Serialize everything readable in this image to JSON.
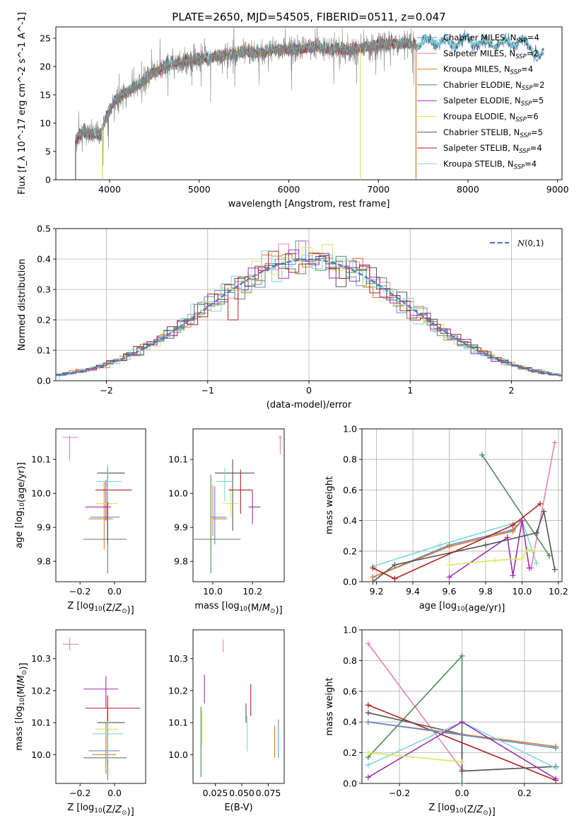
{
  "figure": {
    "title": "PLATE=2650, MJD=54505, FIBERID=0511, z=0.047"
  },
  "colors": {
    "Chabrier MILES": "#5a8fd6",
    "Salpeter MILES": "#e882b4",
    "Kroupa MILES": "#e07b28",
    "Chabrier ELODIE": "#4f8a5b",
    "Salpeter ELODIE": "#9b30b0",
    "Kroupa ELODIE": "#d7e85a",
    "Chabrier STELIB": "#555555",
    "Salpeter STELIB": "#b22222",
    "Kroupa STELIB": "#7fd6dc"
  },
  "chart_data": [
    {
      "id": "spectrum",
      "type": "line",
      "title": "PLATE=2650, MJD=54505, FIBERID=0511, z=0.047",
      "xlabel": "wavelength [Angstrom, rest frame]",
      "ylabel": "Flux [f_λ 10^-17 erg cm^-2 s^-1 A^-1]",
      "xlim": [
        3400,
        9050
      ],
      "ylim": [
        0,
        27
      ],
      "xticks": [
        4000,
        5000,
        6000,
        7000,
        8000,
        9000
      ],
      "yticks": [
        0,
        5,
        10,
        15,
        20,
        25
      ],
      "legend_position": "right",
      "legend": [
        {
          "name": "Chabrier MILES",
          "nssp": "4"
        },
        {
          "name": "Salpeter MILES",
          "nssp": "2"
        },
        {
          "name": "Kroupa MILES",
          "nssp": "4"
        },
        {
          "name": "Chabrier ELODIE",
          "nssp": "2"
        },
        {
          "name": "Salpeter ELODIE",
          "nssp": "5"
        },
        {
          "name": "Kroupa ELODIE",
          "nssp": "6"
        },
        {
          "name": "Chabrier STELIB",
          "nssp": "5"
        },
        {
          "name": "Salpeter STELIB",
          "nssp": "4"
        },
        {
          "name": "Kroupa STELIB",
          "nssp": "4"
        }
      ],
      "continuum": {
        "x": [
          3620,
          3700,
          3800,
          3900,
          3950,
          4050,
          4150,
          4300,
          4500,
          4700,
          4900,
          5100,
          5300,
          5500,
          5700,
          5900,
          6100,
          6300,
          6500,
          6700,
          6900,
          7100,
          7300,
          7420,
          7600,
          7800,
          8000,
          8200,
          8400,
          8600,
          8800,
          8850
        ],
        "y": [
          7,
          8.5,
          8,
          8,
          10.5,
          14,
          15,
          16.5,
          19,
          20.5,
          21,
          21.5,
          22,
          22.5,
          22.5,
          23,
          23,
          23.5,
          23,
          23,
          23.5,
          24,
          24,
          24,
          24.5,
          24,
          24.5,
          24,
          24,
          24.5,
          22,
          22
        ]
      },
      "observed_range": {
        "x": [
          3620,
          7420
        ]
      },
      "dropouts": [
        {
          "x": 3620,
          "series": "Chabrier STELIB"
        },
        {
          "x": 3920,
          "series": "Kroupa ELODIE"
        },
        {
          "x": 6800,
          "series": "Kroupa ELODIE"
        },
        {
          "x": 7420,
          "series": "Kroupa MILES"
        }
      ]
    },
    {
      "id": "residuals",
      "type": "histogram",
      "xlabel": "(data-model)/error",
      "ylabel": "Normed distribution",
      "xlim": [
        -2.5,
        2.5
      ],
      "ylim": [
        0,
        0.5
      ],
      "xticks": [
        -2,
        -1,
        0,
        1,
        2
      ],
      "yticks": [
        0,
        0.1,
        0.2,
        0.3,
        0.4,
        0.5
      ],
      "grid": true,
      "bin_width": 0.1,
      "reference": {
        "label": "N(0,1)",
        "mean": 0,
        "sigma": 1
      },
      "legend_position": "top-right"
    },
    {
      "id": "age_vs_Z",
      "type": "errorbar",
      "xlabel": "Z [log10(Z/Z⊙)]",
      "ylabel": "age [log10(age/yr)]",
      "xlim": [
        -0.34,
        0.18
      ],
      "ylim": [
        9.74,
        10.19
      ],
      "xticks": [
        -0.2,
        0.0
      ],
      "yticks": [
        9.8,
        9.9,
        10.0,
        10.1
      ],
      "points": [
        {
          "series": "Chabrier MILES",
          "x": -0.04,
          "y": 9.93,
          "xerr": [
            0.1,
            0.07
          ],
          "yerr": [
            0.08,
            0.09
          ]
        },
        {
          "series": "Salpeter MILES",
          "x": -0.26,
          "y": 10.165,
          "xerr": [
            0.04,
            0.05
          ],
          "yerr": [
            0.07,
            0.005
          ]
        },
        {
          "series": "Kroupa MILES",
          "x": -0.06,
          "y": 9.925,
          "xerr": [
            0.09,
            0.05
          ],
          "yerr": [
            0.09,
            0.11
          ]
        },
        {
          "series": "Chabrier ELODIE",
          "x": -0.04,
          "y": 9.865,
          "xerr": [
            0.14,
            0.11
          ],
          "yerr": [
            0.1,
            0.2
          ]
        },
        {
          "series": "Salpeter ELODIE",
          "x": -0.05,
          "y": 9.96,
          "xerr": [
            0.12,
            0.03
          ],
          "yerr": [
            0.04,
            0.08
          ]
        },
        {
          "series": "Kroupa ELODIE",
          "x": -0.04,
          "y": 9.97,
          "xerr": [
            0.07,
            0.06
          ],
          "yerr": [
            0.04,
            0.05
          ]
        },
        {
          "series": "Chabrier STELIB",
          "x": -0.04,
          "y": 10.06,
          "xerr": [
            0.06,
            0.1
          ],
          "yerr": [
            0.2,
            0.02
          ]
        },
        {
          "series": "Salpeter STELIB",
          "x": -0.04,
          "y": 10.01,
          "xerr": [
            0.07,
            0.14
          ],
          "yerr": [
            0.08,
            0.06
          ]
        },
        {
          "series": "Kroupa STELIB",
          "x": -0.04,
          "y": 10.035,
          "xerr": [
            0.07,
            0.08
          ],
          "yerr": [
            0.06,
            0.05
          ]
        }
      ]
    },
    {
      "id": "age_vs_mass",
      "type": "errorbar",
      "xlabel": "mass [log10(M/M⊙)]",
      "ylabel": "",
      "xlim": [
        9.9,
        10.36
      ],
      "ylim": [
        9.74,
        10.19
      ],
      "xticks": [
        10.0,
        10.2
      ],
      "yticks": [
        9.8,
        9.9,
        10.0,
        10.1
      ],
      "points": [
        {
          "series": "Chabrier MILES",
          "x": 10.01,
          "y": 9.93,
          "xerr": [
            0.02,
            0.06
          ],
          "yerr": [
            0.08,
            0.09
          ]
        },
        {
          "series": "Salpeter MILES",
          "x": 10.34,
          "y": 10.165,
          "xerr": [
            0.01,
            0.01
          ],
          "yerr": [
            0.05,
            0.005
          ]
        },
        {
          "series": "Kroupa MILES",
          "x": 10.0,
          "y": 9.925,
          "xerr": [
            0.0,
            0.07
          ],
          "yerr": [
            0.05,
            0.1
          ]
        },
        {
          "series": "Chabrier ELODIE",
          "x": 9.99,
          "y": 9.865,
          "xerr": [
            0.09,
            0.15
          ],
          "yerr": [
            0.1,
            0.19
          ]
        },
        {
          "series": "Salpeter ELODIE",
          "x": 10.2,
          "y": 9.96,
          "xerr": [
            0.02,
            0.04
          ],
          "yerr": [
            0.05,
            0.05
          ]
        },
        {
          "series": "Kroupa ELODIE",
          "x": 10.09,
          "y": 9.97,
          "xerr": [
            0.04,
            0.04
          ],
          "yerr": [
            0.04,
            0.05
          ]
        },
        {
          "series": "Chabrier STELIB",
          "x": 10.1,
          "y": 10.06,
          "xerr": [
            0.09,
            0.11
          ],
          "yerr": [
            0.17,
            0.04
          ]
        },
        {
          "series": "Salpeter STELIB",
          "x": 10.14,
          "y": 10.01,
          "xerr": [
            0.06,
            0.06
          ],
          "yerr": [
            0.07,
            0.06
          ]
        },
        {
          "series": "Kroupa STELIB",
          "x": 10.06,
          "y": 10.035,
          "xerr": [
            0.04,
            0.04
          ],
          "yerr": [
            0.06,
            0.04
          ]
        }
      ]
    },
    {
      "id": "weight_vs_age",
      "type": "line",
      "xlabel": "age [log10(age/yr)]",
      "ylabel": "mass weight",
      "xlim": [
        9.12,
        10.22
      ],
      "ylim": [
        0,
        1.0
      ],
      "xticks": [
        9.2,
        9.4,
        9.6,
        9.8,
        10.0,
        10.2
      ],
      "yticks": [
        0.0,
        0.2,
        0.4,
        0.6,
        0.8,
        1.0
      ],
      "grid": true,
      "series": [
        {
          "name": "Kroupa STELIB",
          "x": [
            9.18,
            9.55,
            10.0,
            10.08
          ],
          "y": [
            0.1,
            0.24,
            0.4,
            0.12
          ]
        },
        {
          "name": "Chabrier MILES",
          "x": [
            9.18,
            9.6,
            9.95,
            10.0
          ],
          "y": [
            0.03,
            0.24,
            0.34,
            0.4
          ]
        },
        {
          "name": "Kroupa MILES",
          "x": [
            9.18,
            9.6,
            9.95,
            10.0
          ],
          "y": [
            0.03,
            0.23,
            0.33,
            0.4
          ]
        },
        {
          "name": "Salpeter MILES",
          "x": [
            10.05,
            10.18
          ],
          "y": [
            0.09,
            0.91
          ]
        },
        {
          "name": "Chabrier ELODIE",
          "x": [
            9.78,
            10.15
          ],
          "y": [
            0.83,
            0.17
          ]
        },
        {
          "name": "Salpeter ELODIE",
          "x": [
            9.6,
            9.92,
            9.95,
            10.0,
            10.04
          ],
          "y": [
            0.03,
            0.29,
            0.04,
            0.4,
            0.09
          ]
        },
        {
          "name": "Kroupa ELODIE",
          "x": [
            9.6,
            9.85,
            10.0,
            10.03,
            10.07
          ],
          "y": [
            0.11,
            0.14,
            0.15,
            0.21,
            0.2
          ]
        },
        {
          "name": "Chabrier STELIB",
          "x": [
            9.18,
            9.3,
            9.8,
            10.08,
            10.12,
            10.18
          ],
          "y": [
            0.0,
            0.11,
            0.24,
            0.32,
            0.46,
            0.08
          ]
        },
        {
          "name": "Salpeter STELIB",
          "x": [
            9.18,
            9.3,
            9.95,
            10.1
          ],
          "y": [
            0.09,
            0.02,
            0.37,
            0.51
          ]
        }
      ]
    },
    {
      "id": "mass_vs_Z",
      "type": "errorbar",
      "xlabel": "Z [log10(Z/Z⊙)]",
      "ylabel": "mass [log10(M/M⊙)]",
      "xlim": [
        -0.34,
        0.18
      ],
      "ylim": [
        9.91,
        10.39
      ],
      "xticks": [
        -0.2,
        0.0
      ],
      "yticks": [
        10.0,
        10.1,
        10.2,
        10.3
      ],
      "points": [
        {
          "series": "Chabrier MILES",
          "x": -0.04,
          "y": 10.012,
          "xerr": [
            0.11,
            0.07
          ],
          "yerr": [
            0.04,
            0.07
          ]
        },
        {
          "series": "Salpeter MILES",
          "x": -0.26,
          "y": 10.345,
          "xerr": [
            0.04,
            0.05
          ],
          "yerr": [
            0.02,
            0.02
          ]
        },
        {
          "series": "Kroupa MILES",
          "x": -0.05,
          "y": 10.0,
          "xerr": [
            0.08,
            0.06
          ],
          "yerr": [
            0.06,
            0.1
          ]
        },
        {
          "series": "Chabrier ELODIE",
          "x": -0.04,
          "y": 9.99,
          "xerr": [
            0.14,
            0.11
          ],
          "yerr": [
            0.07,
            0.15
          ]
        },
        {
          "series": "Salpeter ELODIE",
          "x": -0.05,
          "y": 10.205,
          "xerr": [
            0.13,
            0.07
          ],
          "yerr": [
            0.06,
            0.04
          ]
        },
        {
          "series": "Kroupa ELODIE",
          "x": -0.04,
          "y": 10.08,
          "xerr": [
            0.07,
            0.06
          ],
          "yerr": [
            0.06,
            0.08
          ]
        },
        {
          "series": "Chabrier STELIB",
          "x": -0.04,
          "y": 10.1,
          "xerr": [
            0.06,
            0.1
          ],
          "yerr": [
            0.11,
            0.04
          ]
        },
        {
          "series": "Salpeter STELIB",
          "x": -0.04,
          "y": 10.145,
          "xerr": [
            0.13,
            0.19
          ],
          "yerr": [
            0.13,
            0.04
          ]
        },
        {
          "series": "Kroupa STELIB",
          "x": -0.04,
          "y": 10.065,
          "xerr": [
            0.09,
            0.09
          ],
          "yerr": [
            0.08,
            0.04
          ]
        }
      ]
    },
    {
      "id": "mass_vs_ebv",
      "type": "errorbar",
      "xlabel": "E(B-V)",
      "ylabel": "",
      "xlim": [
        0.004,
        0.09
      ],
      "ylim": [
        9.91,
        10.39
      ],
      "xticks": [
        0.025,
        0.05,
        0.075
      ],
      "xticklabels": [
        "0.025",
        "0.050",
        "0.075"
      ],
      "yticks": [
        10.0,
        10.1,
        10.2,
        10.3
      ],
      "points": [
        {
          "series": "Chabrier MILES",
          "x": 0.0845,
          "y": 10.05,
          "yerr": [
            0.06,
            0.06
          ]
        },
        {
          "series": "Salpeter MILES",
          "x": 0.0325,
          "y": 10.34,
          "yerr": [
            0.02,
            0.02
          ]
        },
        {
          "series": "Kroupa MILES",
          "x": 0.081,
          "y": 10.04,
          "yerr": [
            0.05,
            0.05
          ]
        },
        {
          "series": "Chabrier ELODIE",
          "x": 0.0115,
          "y": 10.02,
          "yerr": [
            0.09,
            0.13
          ]
        },
        {
          "series": "Salpeter ELODIE",
          "x": 0.0148,
          "y": 10.2,
          "yerr": [
            0.04,
            0.05
          ]
        },
        {
          "series": "Kroupa ELODIE",
          "x": 0.0125,
          "y": 10.09,
          "yerr": [
            0.06,
            0.05
          ]
        },
        {
          "series": "Chabrier STELIB",
          "x": 0.054,
          "y": 10.12,
          "yerr": [
            0.02,
            0.04
          ]
        },
        {
          "series": "Salpeter STELIB",
          "x": 0.0585,
          "y": 10.16,
          "yerr": [
            0.04,
            0.06
          ]
        },
        {
          "series": "Kroupa STELIB",
          "x": 0.055,
          "y": 10.06,
          "yerr": [
            0.05,
            0.06
          ]
        }
      ]
    },
    {
      "id": "weight_vs_Z",
      "type": "line",
      "xlabel": "Z [log10(Z/Z⊙)]",
      "ylabel": "mass weight",
      "xlim": [
        -0.32,
        0.32
      ],
      "ylim": [
        0,
        1.0
      ],
      "xticks": [
        -0.2,
        0.0,
        0.2
      ],
      "yticks": [
        0.0,
        0.2,
        0.4,
        0.6,
        0.8,
        1.0
      ],
      "grid": true,
      "series": [
        {
          "name": "Salpeter MILES",
          "x": [
            -0.3,
            0.0
          ],
          "y": [
            0.91,
            0.09
          ]
        },
        {
          "name": "Chabrier ELODIE",
          "x": [
            -0.3,
            0.0,
            0.0
          ],
          "y": [
            0.17,
            0.83,
            0.0
          ]
        },
        {
          "name": "Salpeter STELIB",
          "x": [
            -0.3,
            0.3
          ],
          "y": [
            0.51,
            0.02
          ]
        },
        {
          "name": "Chabrier STELIB",
          "x": [
            -0.3,
            0.0,
            0.0,
            0.3
          ],
          "y": [
            0.46,
            0.32,
            0.08,
            0.11
          ]
        },
        {
          "name": "Kroupa MILES",
          "x": [
            -0.3,
            0.3
          ],
          "y": [
            0.4,
            0.24
          ]
        },
        {
          "name": "Chabrier MILES",
          "x": [
            -0.3,
            0.3
          ],
          "y": [
            0.4,
            0.23
          ]
        },
        {
          "name": "Kroupa STELIB",
          "x": [
            -0.3,
            0.0,
            0.3
          ],
          "y": [
            0.12,
            0.4,
            0.1
          ]
        },
        {
          "name": "Salpeter ELODIE",
          "x": [
            -0.3,
            0.0,
            0.3
          ],
          "y": [
            0.04,
            0.4,
            0.03
          ]
        },
        {
          "name": "Kroupa ELODIE",
          "x": [
            -0.3,
            0.0
          ],
          "y": [
            0.2,
            0.14
          ]
        }
      ]
    }
  ]
}
